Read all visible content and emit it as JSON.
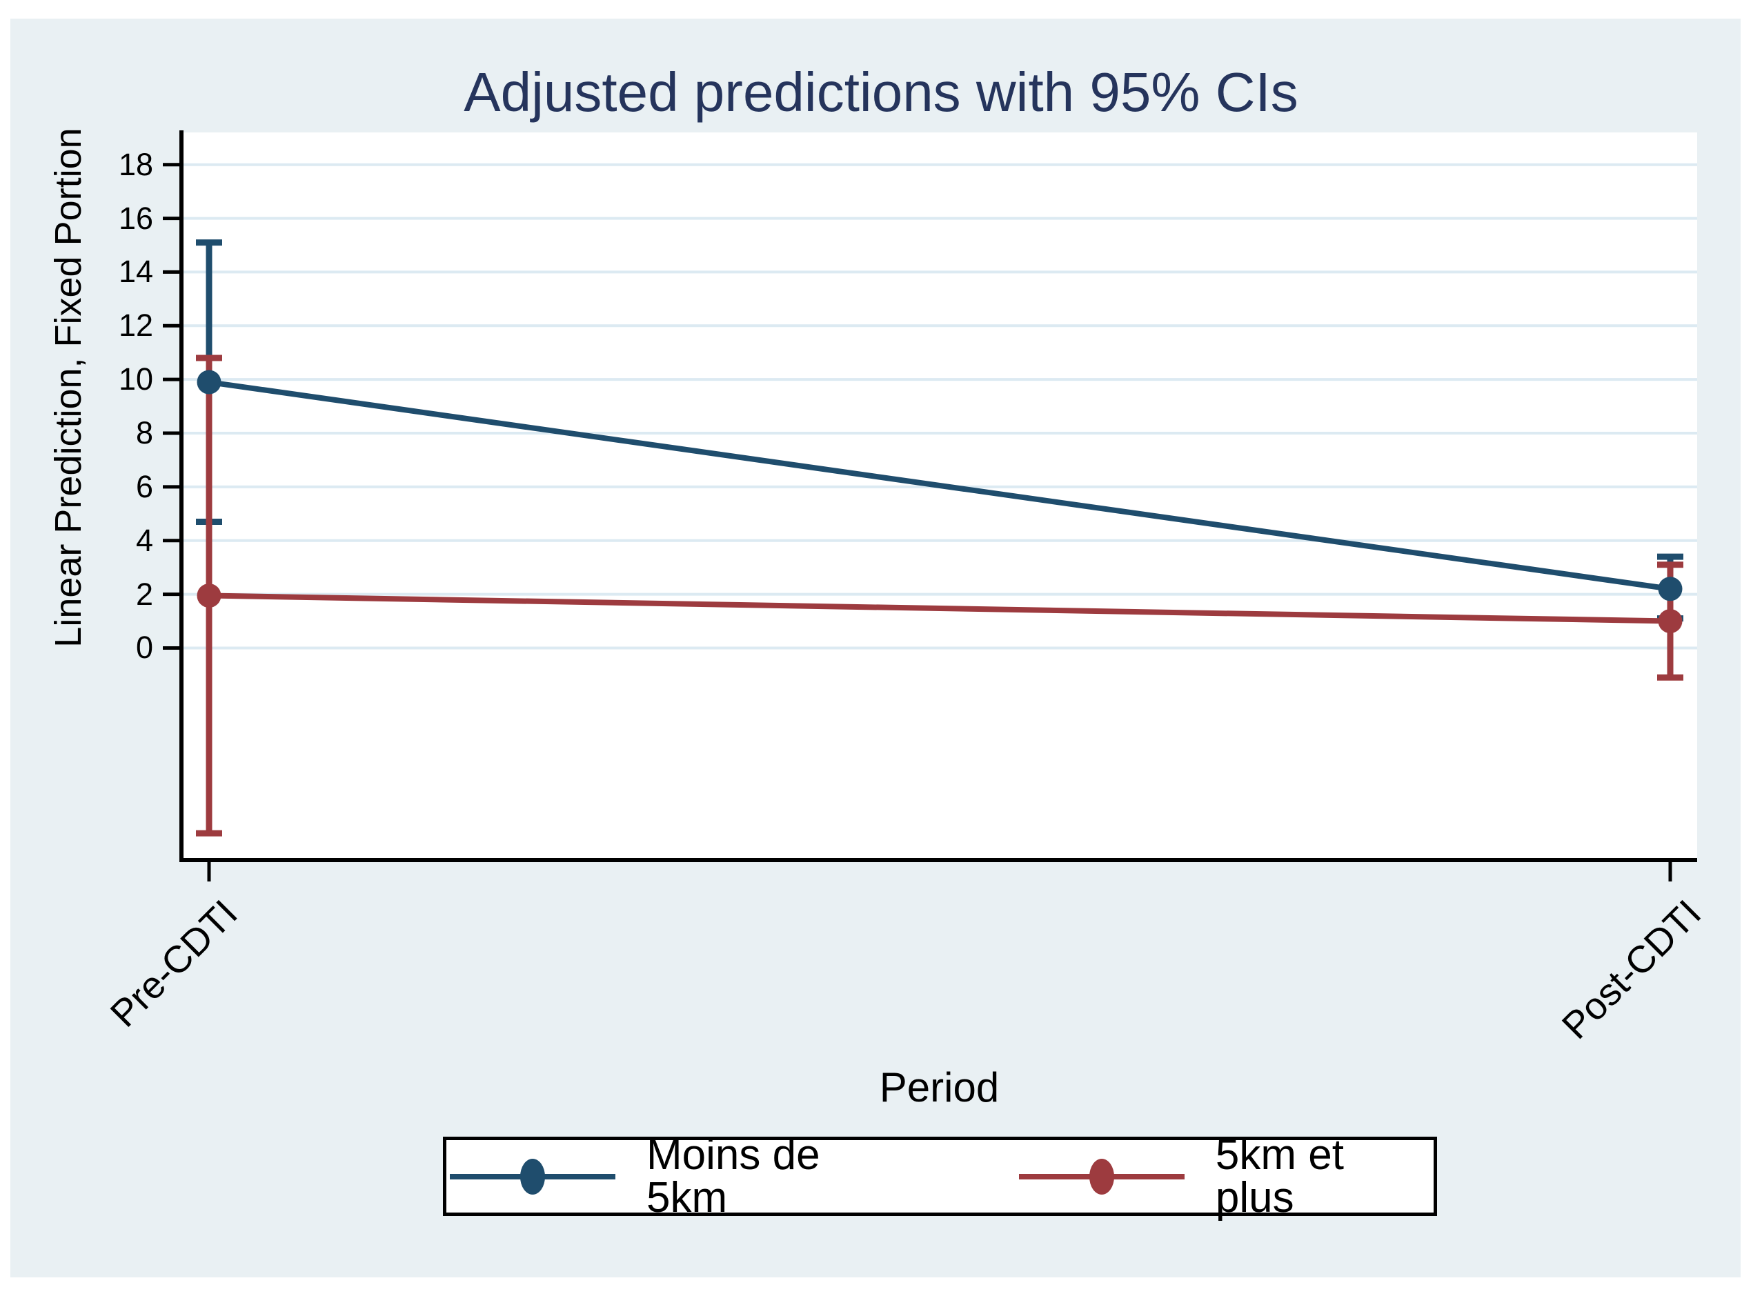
{
  "title": "Adjusted predictions with 95% CIs",
  "ylabel": "Linear Prediction, Fixed Portion",
  "xlabel": "Period",
  "colors": {
    "page": "#ffffff",
    "background": "#e9f0f3",
    "plot_bg": "#ffffff",
    "grid": "#dceaf2",
    "axis": "#000000",
    "title_color": "#25345c",
    "navy": "#1f4d6d",
    "maroon": "#9d3b3f"
  },
  "chart_data": {
    "type": "line",
    "title": "Adjusted predictions with 95% CIs",
    "xlabel": "Period",
    "ylabel": "Linear Prediction, Fixed Portion",
    "x_categories": [
      "Pre-CDTI",
      "Post-CDTI"
    ],
    "yticks": [
      0,
      2,
      4,
      6,
      8,
      10,
      12,
      14,
      16,
      18
    ],
    "ylim": [
      -7.9,
      19.2
    ],
    "grid": "on",
    "legend_position": "bottom",
    "series": [
      {
        "name": "Moins de 5km",
        "color_key": "navy",
        "values": [
          9.9,
          2.2
        ],
        "ci_low": [
          4.7,
          1.1
        ],
        "ci_high": [
          15.1,
          3.4
        ]
      },
      {
        "name": "5km et plus",
        "color_key": "maroon",
        "values": [
          1.95,
          1.0
        ],
        "ci_low": [
          -6.9,
          -1.1
        ],
        "ci_high": [
          10.8,
          3.1
        ]
      }
    ]
  }
}
